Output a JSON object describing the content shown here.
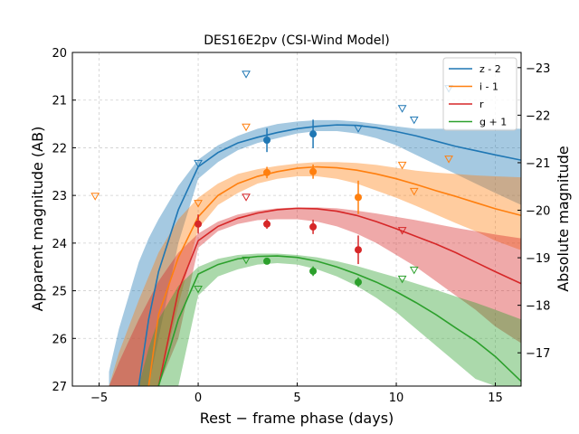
{
  "chart_data": {
    "type": "line",
    "title": "DES16E2pv (CSI-Wind Model)",
    "x_label": "Rest − frame phase (days)",
    "y_label": "Apparent magnitude (AB)",
    "y2_label": "Absolute magnitude",
    "xlim": [
      -6.35,
      16.3
    ],
    "xticks": [
      {
        "value": -5,
        "label": "−5"
      },
      0,
      5,
      10,
      15
    ],
    "ylim": [
      27,
      20
    ],
    "yticks": [
      20,
      21,
      22,
      23,
      24,
      25,
      26,
      27
    ],
    "y2lim": [
      -16.3,
      -23.32
    ],
    "y2ticks": [
      {
        "value": -23,
        "label": "−23"
      },
      {
        "value": -22,
        "label": "−22"
      },
      {
        "value": -21,
        "label": "−21"
      },
      {
        "value": -20,
        "label": "−20"
      },
      {
        "value": -19,
        "label": "−19"
      },
      {
        "value": -18,
        "label": "−18"
      },
      {
        "value": -17,
        "label": "−17"
      }
    ],
    "grid": true,
    "legend": "upper right",
    "model_x": [
      -4.5,
      -4,
      -3,
      -2.5,
      -2,
      -1,
      0,
      1,
      2,
      3,
      4,
      5,
      6,
      7,
      8,
      9,
      10,
      11,
      12,
      13,
      14,
      15,
      16.3
    ],
    "series": [
      {
        "name": "z - 2",
        "color": "#1f77b4",
        "model": [
          null,
          null,
          27,
          25.6,
          24.6,
          23.3,
          22.4,
          22.1,
          21.9,
          21.78,
          21.68,
          21.6,
          21.55,
          21.52,
          21.53,
          21.58,
          21.66,
          21.75,
          21.86,
          21.97,
          22.06,
          22.15,
          22.26
        ],
        "model_upper": [
          26.7,
          25.8,
          24.4,
          23.9,
          23.5,
          22.8,
          22.25,
          21.95,
          21.75,
          21.6,
          21.5,
          21.45,
          21.42,
          21.42,
          21.45,
          21.5,
          21.55,
          21.6,
          21.6,
          21.6,
          21.6,
          21.6,
          21.6
        ],
        "model_lower": [
          27,
          27,
          27,
          27,
          26,
          24,
          22.65,
          22.3,
          22.05,
          21.9,
          21.8,
          21.7,
          21.65,
          21.65,
          21.7,
          21.8,
          21.95,
          22.15,
          22.35,
          22.55,
          22.75,
          22.95,
          23.2
        ],
        "detections": {
          "x": [
            3.47,
            5.8
          ],
          "values": [
            21.84,
            21.71
          ],
          "errors": [
            0.25,
            0.3
          ]
        },
        "upper_limits": {
          "x": [
            2.42,
            0,
            10.3,
            10.9,
            8.08,
            12.65
          ],
          "values": [
            20.46,
            22.33,
            21.18,
            21.42,
            21.6,
            20.76
          ]
        }
      },
      {
        "name": "i - 1",
        "color": "#ff7f0e",
        "model": [
          null,
          null,
          null,
          27,
          25.5,
          24.3,
          23.45,
          23.0,
          22.75,
          22.6,
          22.5,
          22.43,
          22.4,
          22.42,
          22.47,
          22.55,
          22.65,
          22.77,
          22.9,
          23.02,
          23.15,
          23.28,
          23.42
        ],
        "model_upper": [
          27,
          26.3,
          25.2,
          24.7,
          24.2,
          23.5,
          23.05,
          22.75,
          22.55,
          22.45,
          22.38,
          22.33,
          22.3,
          22.3,
          22.32,
          22.36,
          22.42,
          22.48,
          22.52,
          22.55,
          22.58,
          22.6,
          22.62
        ],
        "model_lower": [
          27,
          27,
          27,
          27,
          27,
          25.3,
          23.7,
          23.2,
          22.95,
          22.75,
          22.65,
          22.6,
          22.6,
          22.65,
          22.75,
          22.9,
          23.05,
          23.22,
          23.4,
          23.58,
          23.75,
          23.95,
          24.15
        ],
        "detections": {
          "x": [
            3.47,
            5.8,
            8.08
          ],
          "values": [
            22.52,
            22.5,
            23.04
          ],
          "errors": [
            0.12,
            0.15,
            0.35
          ]
        },
        "upper_limits": {
          "x": [
            -5.2,
            0,
            2.42,
            10.3,
            10.9,
            12.65
          ],
          "values": [
            23.02,
            23.17,
            21.57,
            22.37,
            22.92,
            22.24
          ]
        }
      },
      {
        "name": "r",
        "color": "#d62728",
        "model": [
          null,
          null,
          null,
          null,
          27,
          25.0,
          23.95,
          23.65,
          23.48,
          23.37,
          23.3,
          23.27,
          23.28,
          23.33,
          23.42,
          23.55,
          23.7,
          23.86,
          24.02,
          24.2,
          24.4,
          24.6,
          24.85
        ],
        "model_upper": [
          27,
          26.5,
          25.6,
          25.2,
          24.8,
          24.2,
          23.8,
          23.55,
          23.4,
          23.32,
          23.27,
          23.25,
          23.25,
          23.27,
          23.32,
          23.38,
          23.45,
          23.52,
          23.6,
          23.68,
          23.75,
          23.82,
          23.9
        ],
        "model_lower": [
          27,
          27,
          27,
          27,
          27,
          26,
          24.1,
          23.75,
          23.6,
          23.52,
          23.5,
          23.5,
          23.55,
          23.65,
          23.8,
          24.0,
          24.25,
          24.5,
          24.8,
          25.1,
          25.4,
          25.75,
          26.1
        ],
        "detections": {
          "x": [
            0,
            3.47,
            5.8,
            8.08
          ],
          "values": [
            23.6,
            23.6,
            23.66,
            24.14
          ],
          "errors": [
            0.2,
            0.1,
            0.15,
            0.3
          ]
        },
        "upper_limits": {
          "x": [
            2.42,
            10.3
          ],
          "values": [
            23.04,
            23.74
          ]
        }
      },
      {
        "name": "g + 1",
        "color": "#2ca02c",
        "model": [
          null,
          null,
          null,
          null,
          27,
          25.6,
          24.65,
          24.45,
          24.33,
          24.28,
          24.27,
          24.3,
          24.38,
          24.5,
          24.65,
          24.82,
          25.02,
          25.25,
          25.5,
          25.78,
          26.05,
          26.38,
          26.9
        ],
        "model_upper": [
          null,
          null,
          27,
          26.2,
          25.6,
          24.9,
          24.5,
          24.33,
          24.25,
          24.22,
          24.22,
          24.25,
          24.3,
          24.38,
          24.48,
          24.6,
          24.72,
          24.85,
          24.98,
          25.12,
          25.25,
          25.4,
          25.6
        ],
        "model_lower": [
          null,
          null,
          27,
          27,
          27,
          27,
          25.1,
          24.7,
          24.55,
          24.45,
          24.42,
          24.45,
          24.55,
          24.7,
          24.9,
          25.15,
          25.45,
          25.8,
          26.15,
          26.5,
          26.85,
          27,
          27
        ],
        "detections": {
          "x": [
            3.47,
            5.8,
            8.08
          ],
          "values": [
            24.38,
            24.59,
            24.82
          ],
          "errors": [
            0.05,
            0.1,
            0.1
          ]
        },
        "upper_limits": {
          "x": [
            0,
            2.42,
            10.3,
            10.9
          ],
          "values": [
            24.97,
            24.36,
            24.76,
            24.57
          ]
        }
      }
    ]
  }
}
